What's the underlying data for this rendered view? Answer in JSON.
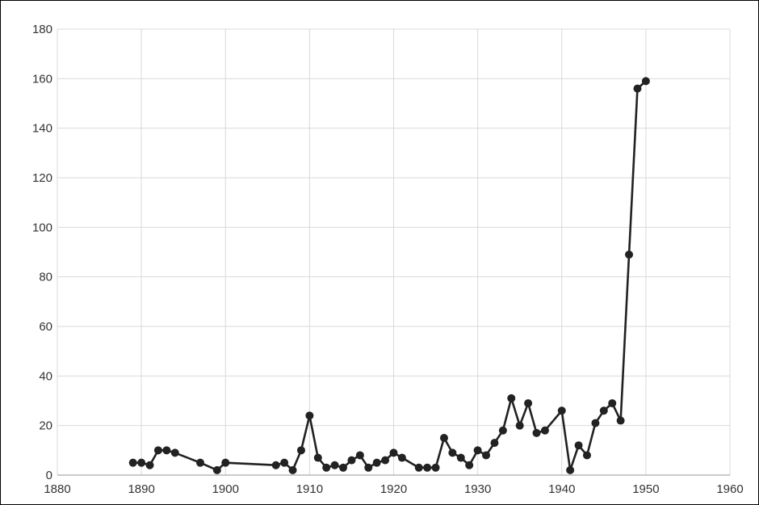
{
  "chart_data": {
    "type": "line",
    "title": "",
    "xlabel": "",
    "ylabel": "",
    "xlim": [
      1880,
      1960
    ],
    "ylim": [
      0,
      180
    ],
    "x_ticks": [
      "1880",
      "1890",
      "1900",
      "1910",
      "1920",
      "1930",
      "1940",
      "1950",
      "1960"
    ],
    "y_ticks": [
      "0",
      "20",
      "40",
      "60",
      "80",
      "100",
      "120",
      "140",
      "160",
      "180"
    ],
    "grid": true,
    "legend": "none",
    "markers": true,
    "series": [
      {
        "color": "#222222",
        "x": [
          1889,
          1890,
          1891,
          1892,
          1893,
          1894,
          1897,
          1899,
          1900,
          1906,
          1907,
          1908,
          1909,
          1910,
          1911,
          1912,
          1913,
          1914,
          1915,
          1916,
          1917,
          1918,
          1919,
          1920,
          1921,
          1923,
          1924,
          1925,
          1926,
          1927,
          1928,
          1929,
          1930,
          1931,
          1932,
          1933,
          1934,
          1935,
          1936,
          1937,
          1938,
          1940,
          1941,
          1942,
          1943,
          1944,
          1945,
          1946,
          1947,
          1948,
          1949,
          1950
        ],
        "y": [
          5,
          5,
          4,
          10,
          10,
          9,
          5,
          2,
          5,
          4,
          5,
          2,
          10,
          24,
          7,
          3,
          4,
          3,
          6,
          8,
          3,
          5,
          6,
          9,
          7,
          3,
          3,
          3,
          15,
          9,
          7,
          4,
          10,
          8,
          13,
          18,
          31,
          20,
          29,
          17,
          18,
          26,
          2,
          12,
          8,
          21,
          26,
          29,
          22,
          89,
          156,
          159
        ]
      }
    ]
  }
}
